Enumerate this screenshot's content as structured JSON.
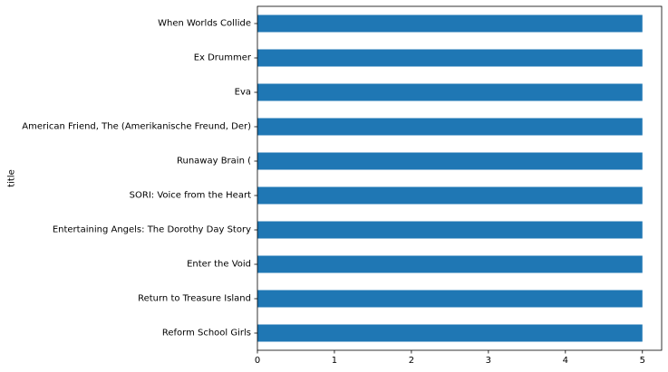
{
  "chart_data": {
    "type": "bar",
    "orientation": "horizontal",
    "categories": [
      "When Worlds Collide",
      "Ex Drummer",
      "Eva",
      "American Friend, The (Amerikanische Freund, Der)",
      "Runaway Brain (",
      "SORI: Voice from the Heart",
      "Entertaining Angels: The Dorothy Day Story",
      "Enter the Void",
      "Return to Treasure Island",
      "Reform School Girls"
    ],
    "values": [
      5,
      5,
      5,
      5,
      5,
      5,
      5,
      5,
      5,
      5
    ],
    "xlabel": "",
    "ylabel": "title",
    "xlim": [
      0,
      5.25
    ],
    "xticks": [
      "0",
      "1",
      "2",
      "3",
      "4",
      "5"
    ],
    "grid": false,
    "bar_color": "#1f77b4"
  }
}
